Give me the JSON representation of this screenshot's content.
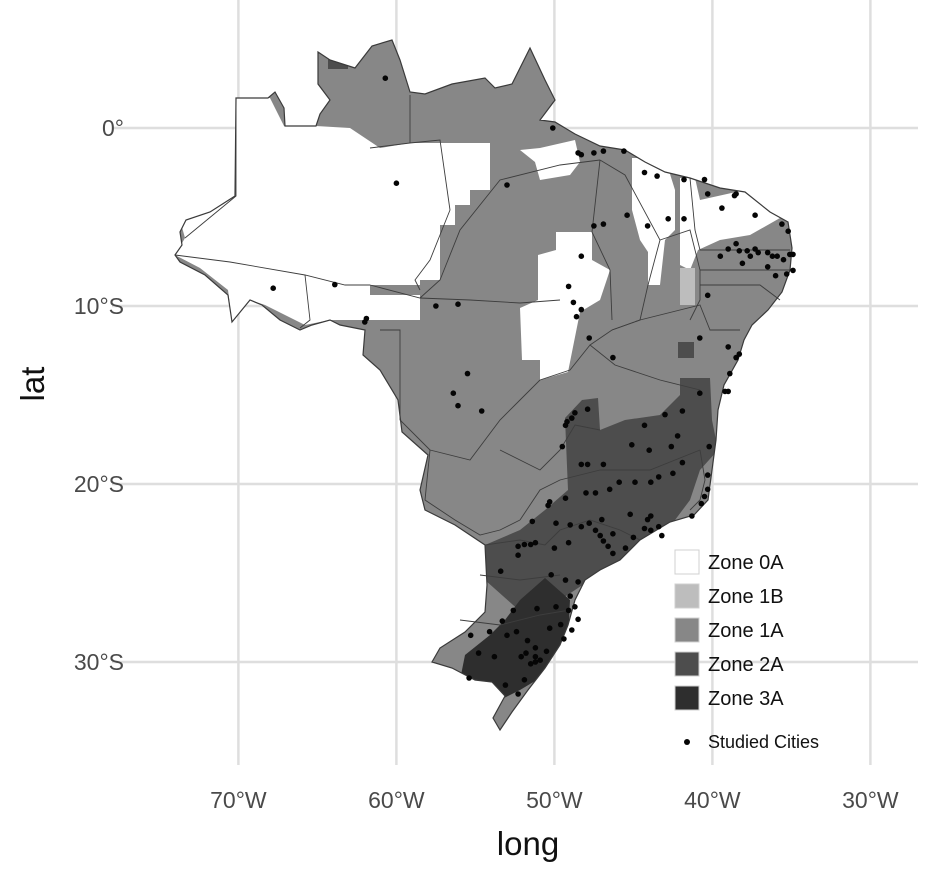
{
  "axes": {
    "xlabel": "long",
    "ylabel": "lat",
    "x_ticks": [
      {
        "value": -70,
        "label": "70°W"
      },
      {
        "value": -60,
        "label": "60°W"
      },
      {
        "value": -50,
        "label": "50°W"
      },
      {
        "value": -40,
        "label": "40°W"
      },
      {
        "value": -30,
        "label": "30°W"
      }
    ],
    "y_ticks": [
      {
        "value": 0,
        "label": "0°"
      },
      {
        "value": -10,
        "label": "10°S"
      },
      {
        "value": -20,
        "label": "20°S"
      },
      {
        "value": -30,
        "label": "30°S"
      }
    ],
    "xlim": [
      -76,
      -28
    ],
    "ylim": [
      -35,
      7
    ]
  },
  "legend": {
    "placement": "bottom-right",
    "items": [
      {
        "label": "Zone 0A",
        "color": "#ffffff"
      },
      {
        "label": "Zone 1B",
        "color": "#bdbdbd"
      },
      {
        "label": "Zone 1A",
        "color": "#878787"
      },
      {
        "label": "Zone 2A",
        "color": "#4d4d4d"
      },
      {
        "label": "Zone 3A",
        "color": "#2e2e2e"
      }
    ],
    "points_label": "Studied Cities"
  },
  "colors": {
    "zone_0a": "#ffffff",
    "zone_1b": "#bdbdbd",
    "zone_1a": "#878787",
    "zone_2a": "#4d4d4d",
    "zone_3a": "#2e2e2e",
    "city": "#050505",
    "grid": "#dedede"
  },
  "chart_data": {
    "type": "scatter",
    "title": "",
    "xlabel": "long",
    "ylabel": "lat",
    "xlim": [
      -76,
      -28
    ],
    "ylim": [
      -35,
      7
    ],
    "grid": true,
    "legend_placement": "bottom-right",
    "series": [
      {
        "name": "Studied Cities",
        "points": [
          [
            -60.7,
            2.8
          ],
          [
            -50.1,
            0.0
          ],
          [
            -48.5,
            -1.4
          ],
          [
            -48.3,
            -1.5
          ],
          [
            -47.5,
            -1.4
          ],
          [
            -46.9,
            -1.3
          ],
          [
            -45.6,
            -1.3
          ],
          [
            -44.3,
            -2.5
          ],
          [
            -43.5,
            -2.7
          ],
          [
            -41.8,
            -2.9
          ],
          [
            -40.5,
            -2.9
          ],
          [
            -38.5,
            -3.7
          ],
          [
            -38.6,
            -3.8
          ],
          [
            -40.3,
            -3.7
          ],
          [
            -39.4,
            -4.5
          ],
          [
            -37.3,
            -4.9
          ],
          [
            -35.2,
            -5.8
          ],
          [
            -35.6,
            -5.4
          ],
          [
            -38.5,
            -6.5
          ],
          [
            -39.0,
            -6.8
          ],
          [
            -37.8,
            -6.9
          ],
          [
            -37.3,
            -6.8
          ],
          [
            -36.5,
            -7.0
          ],
          [
            -36.2,
            -7.2
          ],
          [
            -35.9,
            -7.2
          ],
          [
            -35.5,
            -7.4
          ],
          [
            -35.1,
            -7.1
          ],
          [
            -34.9,
            -7.1
          ],
          [
            -34.9,
            -8.0
          ],
          [
            -35.3,
            -8.2
          ],
          [
            -36.0,
            -8.3
          ],
          [
            -36.5,
            -7.8
          ],
          [
            -37.1,
            -7.0
          ],
          [
            -37.6,
            -7.2
          ],
          [
            -38.1,
            -7.6
          ],
          [
            -38.3,
            -6.9
          ],
          [
            -39.5,
            -7.2
          ],
          [
            -40.3,
            -9.4
          ],
          [
            -41.8,
            -5.1
          ],
          [
            -42.8,
            -5.1
          ],
          [
            -44.1,
            -5.5
          ],
          [
            -45.4,
            -4.9
          ],
          [
            -46.9,
            -5.4
          ],
          [
            -47.5,
            -5.5
          ],
          [
            -48.3,
            -7.2
          ],
          [
            -48.3,
            -10.2
          ],
          [
            -48.8,
            -9.8
          ],
          [
            -47.8,
            -11.8
          ],
          [
            -48.6,
            -10.6
          ],
          [
            -49.1,
            -8.9
          ],
          [
            -53.0,
            -3.2
          ],
          [
            -60.0,
            -3.1
          ],
          [
            -63.9,
            -8.8
          ],
          [
            -67.8,
            -9.0
          ],
          [
            -61.9,
            -10.7
          ],
          [
            -62.0,
            -10.9
          ],
          [
            -56.1,
            -9.9
          ],
          [
            -57.5,
            -10.0
          ],
          [
            -56.1,
            -15.6
          ],
          [
            -55.5,
            -13.8
          ],
          [
            -56.4,
            -14.9
          ],
          [
            -54.6,
            -15.9
          ],
          [
            -46.3,
            -12.9
          ],
          [
            -40.8,
            -11.8
          ],
          [
            -39.0,
            -12.3
          ],
          [
            -38.5,
            -12.9
          ],
          [
            -38.9,
            -13.8
          ],
          [
            -38.3,
            -12.7
          ],
          [
            -39.2,
            -14.8
          ],
          [
            -39.0,
            -14.8
          ],
          [
            -40.8,
            -14.9
          ],
          [
            -41.9,
            -15.9
          ],
          [
            -43.0,
            -16.1
          ],
          [
            -42.2,
            -17.3
          ],
          [
            -40.2,
            -17.9
          ],
          [
            -40.3,
            -19.5
          ],
          [
            -40.3,
            -20.3
          ],
          [
            -40.5,
            -20.7
          ],
          [
            -40.7,
            -21.1
          ],
          [
            -41.3,
            -21.8
          ],
          [
            -43.2,
            -22.9
          ],
          [
            -43.4,
            -22.4
          ],
          [
            -43.9,
            -22.6
          ],
          [
            -44.3,
            -22.5
          ],
          [
            -44.1,
            -22.0
          ],
          [
            -45.0,
            -23.0
          ],
          [
            -45.5,
            -23.6
          ],
          [
            -46.3,
            -23.9
          ],
          [
            -46.6,
            -23.5
          ],
          [
            -46.9,
            -23.2
          ],
          [
            -47.1,
            -22.9
          ],
          [
            -47.4,
            -22.6
          ],
          [
            -47.8,
            -22.2
          ],
          [
            -48.3,
            -22.4
          ],
          [
            -49.0,
            -22.3
          ],
          [
            -49.9,
            -22.2
          ],
          [
            -50.4,
            -21.2
          ],
          [
            -51.4,
            -22.1
          ],
          [
            -50.3,
            -21.0
          ],
          [
            -49.3,
            -20.8
          ],
          [
            -48.0,
            -20.5
          ],
          [
            -47.4,
            -20.5
          ],
          [
            -46.5,
            -20.3
          ],
          [
            -45.9,
            -19.9
          ],
          [
            -44.9,
            -19.9
          ],
          [
            -43.9,
            -19.9
          ],
          [
            -43.4,
            -19.6
          ],
          [
            -42.5,
            -19.4
          ],
          [
            -41.9,
            -18.8
          ],
          [
            -42.6,
            -17.9
          ],
          [
            -44.0,
            -18.1
          ],
          [
            -45.1,
            -17.8
          ],
          [
            -46.9,
            -18.9
          ],
          [
            -47.9,
            -18.9
          ],
          [
            -48.3,
            -18.9
          ],
          [
            -49.5,
            -17.9
          ],
          [
            -49.3,
            -16.7
          ],
          [
            -48.9,
            -16.3
          ],
          [
            -47.9,
            -15.8
          ],
          [
            -48.7,
            -16.0
          ],
          [
            -49.2,
            -16.5
          ],
          [
            -44.3,
            -16.7
          ],
          [
            -43.9,
            -21.8
          ],
          [
            -45.2,
            -21.7
          ],
          [
            -46.3,
            -22.8
          ],
          [
            -47.0,
            -22.0
          ],
          [
            -49.1,
            -23.3
          ],
          [
            -50.0,
            -23.6
          ],
          [
            -51.2,
            -23.3
          ],
          [
            -51.5,
            -23.4
          ],
          [
            -51.9,
            -23.4
          ],
          [
            -52.3,
            -23.5
          ],
          [
            -53.4,
            -24.9
          ],
          [
            -52.3,
            -24.0
          ],
          [
            -50.2,
            -25.1
          ],
          [
            -49.3,
            -25.4
          ],
          [
            -48.5,
            -25.5
          ],
          [
            -49.0,
            -26.3
          ],
          [
            -48.7,
            -26.9
          ],
          [
            -48.5,
            -27.6
          ],
          [
            -49.1,
            -27.1
          ],
          [
            -49.9,
            -26.9
          ],
          [
            -51.1,
            -27.0
          ],
          [
            -52.6,
            -27.1
          ],
          [
            -53.3,
            -27.7
          ],
          [
            -54.1,
            -28.3
          ],
          [
            -55.3,
            -28.5
          ],
          [
            -54.8,
            -29.5
          ],
          [
            -53.8,
            -29.7
          ],
          [
            -52.4,
            -28.3
          ],
          [
            -51.2,
            -29.2
          ],
          [
            -51.2,
            -30.0
          ],
          [
            -51.5,
            -30.1
          ],
          [
            -51.8,
            -29.5
          ],
          [
            -52.1,
            -29.7
          ],
          [
            -50.5,
            -29.4
          ],
          [
            -51.2,
            -29.7
          ],
          [
            -52.3,
            -31.8
          ],
          [
            -53.1,
            -31.3
          ],
          [
            -51.9,
            -31.0
          ],
          [
            -55.4,
            -30.9
          ],
          [
            -53.0,
            -28.5
          ],
          [
            -50.9,
            -29.9
          ],
          [
            -51.7,
            -28.8
          ],
          [
            -50.3,
            -28.1
          ],
          [
            -49.4,
            -28.7
          ],
          [
            -48.9,
            -28.2
          ],
          [
            -49.6,
            -27.9
          ]
        ]
      }
    ]
  }
}
